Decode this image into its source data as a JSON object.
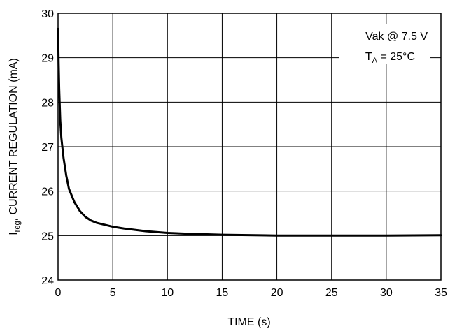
{
  "chart_data": {
    "type": "line",
    "xlabel": "TIME (s)",
    "ylabel": {
      "prefix": "I",
      "subscript": "reg",
      "rest": ", CURRENT REGULATION (mA)"
    },
    "xlim": [
      0,
      35
    ],
    "ylim": [
      24,
      30
    ],
    "xticks": [
      "0",
      "5",
      "10",
      "15",
      "20",
      "25",
      "30",
      "35"
    ],
    "yticks": [
      "24",
      "25",
      "26",
      "27",
      "28",
      "29",
      "30"
    ],
    "grid": true,
    "annotations": {
      "line1": "Vak @ 7.5 V",
      "line2_prefix": "T",
      "line2_sub": "A",
      "line2_rest": " = 25°C"
    },
    "series": [
      {
        "x": [
          0,
          0.05,
          0.1,
          0.2,
          0.3,
          0.5,
          0.75,
          1,
          1.5,
          2,
          2.5,
          3,
          3.5,
          4,
          5,
          6,
          8,
          10,
          12,
          15,
          18,
          20,
          25,
          30,
          35
        ],
        "y": [
          29.65,
          28.9,
          28.3,
          27.6,
          27.2,
          26.75,
          26.35,
          26.05,
          25.75,
          25.55,
          25.42,
          25.34,
          25.29,
          25.26,
          25.2,
          25.16,
          25.1,
          25.06,
          25.04,
          25.02,
          25.01,
          25.0,
          25.0,
          25.0,
          25.01
        ]
      }
    ]
  }
}
